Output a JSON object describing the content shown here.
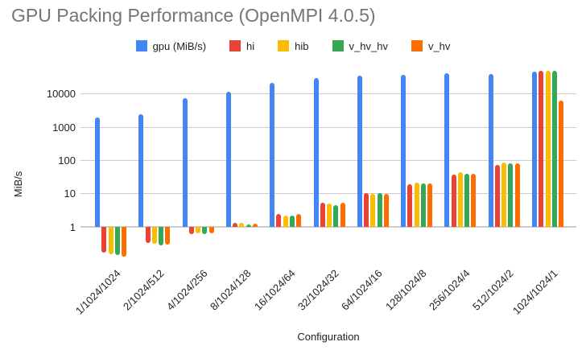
{
  "title": "GPU Packing Performance (OpenMPI 4.0.5)",
  "legend": {
    "items": [
      {
        "label": "gpu (MiB/s)",
        "color": "#4285F4"
      },
      {
        "label": "hi",
        "color": "#EA4335"
      },
      {
        "label": "hib",
        "color": "#FBBC04"
      },
      {
        "label": "v_hv_hv",
        "color": "#34A853"
      },
      {
        "label": "v_hv",
        "color": "#FF6D01"
      }
    ]
  },
  "y_axis": {
    "title": "MiB/s",
    "scale": "log",
    "ticks": [
      1,
      10,
      100,
      1000,
      10000
    ]
  },
  "x_axis": {
    "title": "Configuration"
  },
  "colors": {
    "gridline": "#cccccc",
    "title_text": "#757575",
    "axis_text": "#222222"
  },
  "chart_data": {
    "type": "bar",
    "title": "GPU Packing Performance (OpenMPI 4.0.5)",
    "xlabel": "Configuration",
    "ylabel": "MiB/s",
    "yscale": "log",
    "ylim": [
      0.1,
      60000
    ],
    "grid": true,
    "legend_position": "top",
    "categories": [
      "1/1024/1024",
      "2/1024/512",
      "4/1024/256",
      "8/1024/128",
      "16/1024/64",
      "32/1024/32",
      "64/1024/16",
      "128/1024/8",
      "256/1024/4",
      "512/1024/2",
      "1024/1024/1"
    ],
    "series": [
      {
        "name": "gpu (MiB/s)",
        "color": "#4285F4",
        "values": [
          2000,
          2400,
          7600,
          11500,
          21000,
          30000,
          36000,
          38000,
          42000,
          40000,
          46000
        ]
      },
      {
        "name": "hi",
        "color": "#EA4335",
        "values": [
          0.17,
          0.32,
          0.62,
          1.3,
          2.4,
          5.3,
          10.3,
          19,
          37,
          75,
          50000
        ]
      },
      {
        "name": "hib",
        "color": "#FBBC04",
        "values": [
          0.15,
          0.31,
          0.65,
          1.35,
          2.2,
          5.0,
          9.7,
          21,
          44,
          88,
          49000
        ]
      },
      {
        "name": "v_hv_hv",
        "color": "#34A853",
        "values": [
          0.14,
          0.28,
          0.6,
          1.2,
          2.2,
          4.6,
          10.3,
          20,
          40,
          80,
          50000
        ]
      },
      {
        "name": "v_hv",
        "color": "#FF6D01",
        "values": [
          0.13,
          0.3,
          0.65,
          1.25,
          2.4,
          5.3,
          10.0,
          20,
          40,
          83,
          6300
        ]
      }
    ]
  }
}
